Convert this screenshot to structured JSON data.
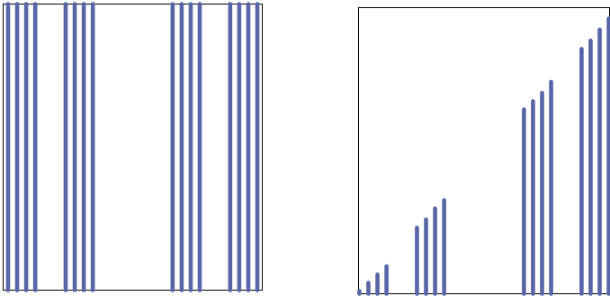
{
  "chart_data": [
    {
      "type": "bar",
      "panel": "left",
      "series_color": "#5865a8",
      "grid": false,
      "legend": "none",
      "xlabel": "",
      "ylabel": "",
      "x": [
        0.0,
        1.1,
        2.2,
        3.3,
        7.0,
        8.1,
        9.2,
        10.3,
        20.0,
        21.1,
        22.2,
        23.3,
        27.0,
        28.1,
        29.2,
        30.3
      ],
      "values": [
        1,
        1,
        1,
        1,
        1,
        1,
        1,
        1,
        1,
        1,
        1,
        1,
        1,
        1,
        1,
        1
      ],
      "xlim": [
        -0.6,
        30.9
      ],
      "ylim": [
        0,
        1
      ]
    },
    {
      "type": "bar",
      "panel": "right",
      "series_color": "#5865a8",
      "grid": false,
      "legend": "none",
      "xlabel": "",
      "ylabel": "",
      "x": [
        0.0,
        1.1,
        2.2,
        3.3,
        7.0,
        8.1,
        9.2,
        10.3,
        20.0,
        21.1,
        22.2,
        23.3,
        27.0,
        28.1,
        29.2,
        30.3
      ],
      "values": [
        0.01,
        0.04,
        0.07,
        0.1,
        0.24,
        0.27,
        0.31,
        0.34,
        0.67,
        0.7,
        0.73,
        0.77,
        0.89,
        0.92,
        0.96,
        1.0
      ],
      "xlim": [
        -0.1,
        30.4
      ],
      "ylim": [
        0,
        1.04
      ]
    }
  ]
}
